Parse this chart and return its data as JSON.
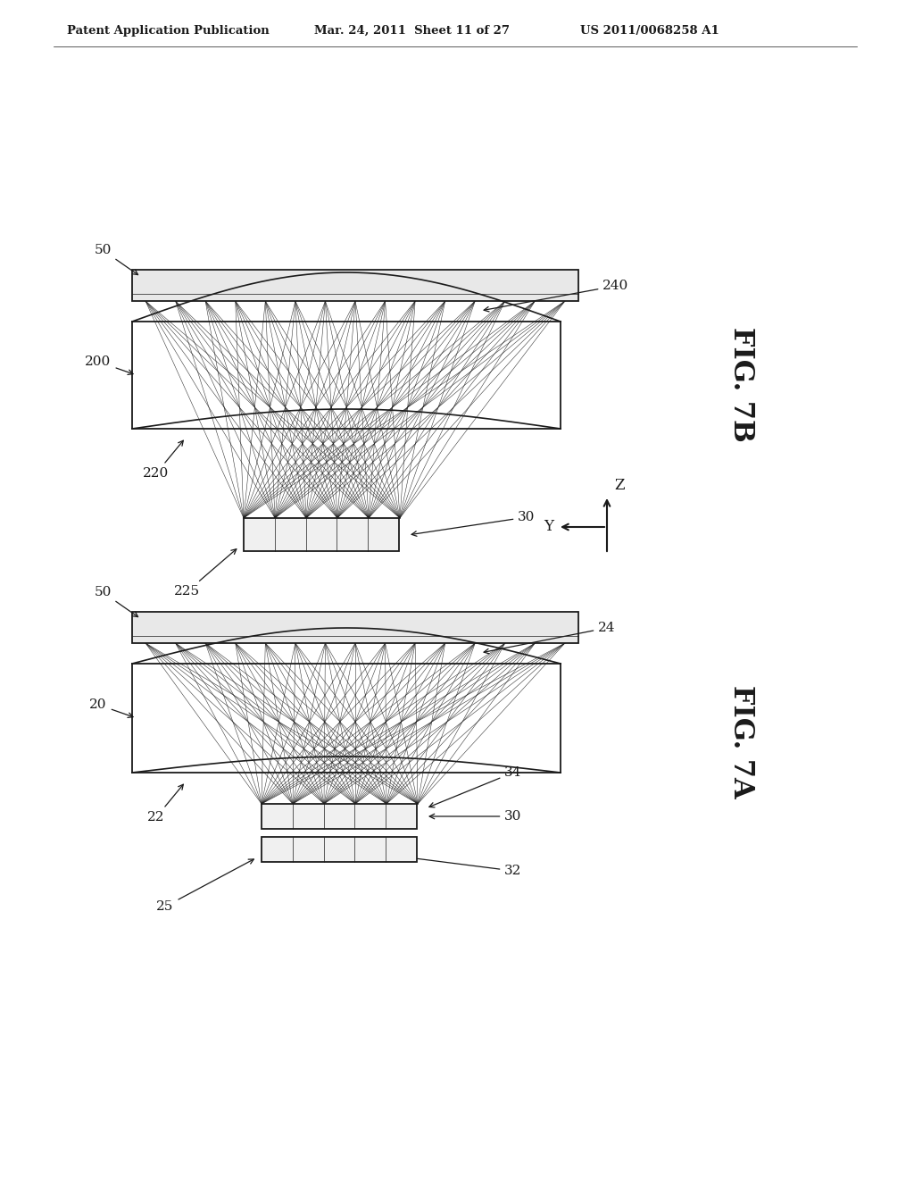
{
  "header_left": "Patent Application Publication",
  "header_mid": "Mar. 24, 2011  Sheet 11 of 27",
  "header_right": "US 2011/0068258 A1",
  "fig7b_label": "FIG. 7B",
  "fig7a_label": "FIG. 7A",
  "background": "#ffffff",
  "line_color": "#1a1a1a",
  "gray_fill": "#d8d8d8"
}
